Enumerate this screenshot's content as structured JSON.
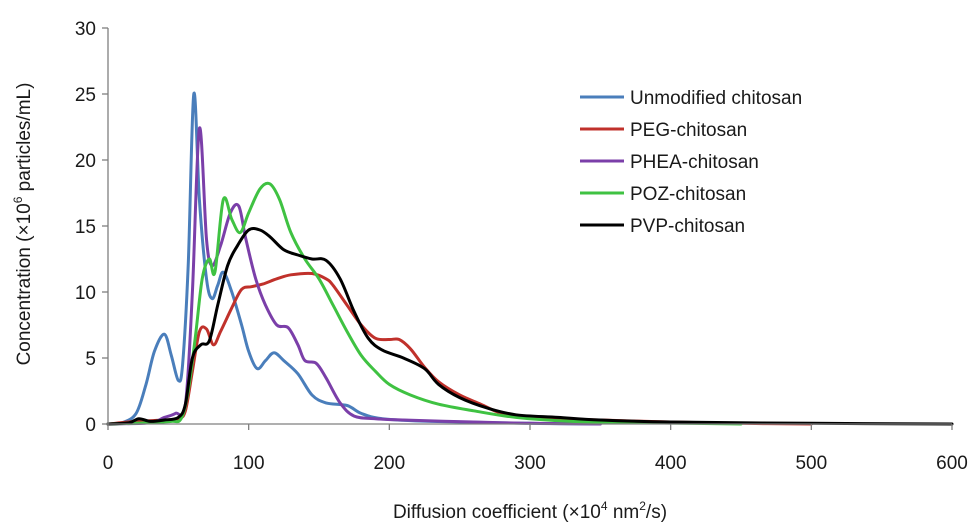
{
  "chart_data": {
    "type": "line",
    "xlabel": {
      "pre": "Diffusion coefficient (×10",
      "sup1": "4",
      "mid": " nm",
      "sup2": "2",
      "post": "/s)"
    },
    "ylabel": {
      "pre": "Concentration (×10",
      "sup": "6",
      "post": " particles/mL)"
    },
    "xlim": [
      0,
      600
    ],
    "ylim": [
      0,
      30
    ],
    "xticks": [
      "0",
      "100",
      "200",
      "300",
      "400",
      "500",
      "600"
    ],
    "yticks": [
      "0",
      "5",
      "10",
      "15",
      "20",
      "25",
      "30"
    ],
    "grid": false,
    "legend_position": "top-right",
    "series": [
      {
        "name": "Unmodified chitosan",
        "color": "#4a7ebb",
        "points": [
          [
            0,
            0
          ],
          [
            10,
            0.1
          ],
          [
            20,
            0.8
          ],
          [
            27,
            3.0
          ],
          [
            33,
            5.5
          ],
          [
            40,
            6.8
          ],
          [
            45,
            5.2
          ],
          [
            50,
            3.3
          ],
          [
            53,
            4.5
          ],
          [
            57,
            12
          ],
          [
            61,
            25
          ],
          [
            65,
            17
          ],
          [
            70,
            11
          ],
          [
            74,
            9.5
          ],
          [
            78,
            10.5
          ],
          [
            82,
            11.5
          ],
          [
            88,
            10
          ],
          [
            95,
            7.5
          ],
          [
            100,
            5.5
          ],
          [
            106,
            4.2
          ],
          [
            112,
            4.8
          ],
          [
            118,
            5.4
          ],
          [
            125,
            4.8
          ],
          [
            135,
            3.8
          ],
          [
            145,
            2.2
          ],
          [
            155,
            1.6
          ],
          [
            170,
            1.4
          ],
          [
            180,
            0.8
          ],
          [
            195,
            0.4
          ],
          [
            230,
            0.2
          ],
          [
            300,
            0.05
          ],
          [
            350,
            0
          ]
        ]
      },
      {
        "name": "PEG-chitosan",
        "color": "#c0312b",
        "points": [
          [
            0,
            0
          ],
          [
            20,
            0.2
          ],
          [
            40,
            0.3
          ],
          [
            50,
            0.4
          ],
          [
            55,
            1.0
          ],
          [
            60,
            4.0
          ],
          [
            65,
            7.0
          ],
          [
            70,
            7.2
          ],
          [
            75,
            6.0
          ],
          [
            80,
            7.0
          ],
          [
            88,
            8.8
          ],
          [
            95,
            10.2
          ],
          [
            102,
            10.4
          ],
          [
            110,
            10.6
          ],
          [
            120,
            11.0
          ],
          [
            130,
            11.3
          ],
          [
            145,
            11.4
          ],
          [
            155,
            11.0
          ],
          [
            160,
            10.5
          ],
          [
            170,
            9.0
          ],
          [
            180,
            7.5
          ],
          [
            190,
            6.5
          ],
          [
            200,
            6.4
          ],
          [
            207,
            6.4
          ],
          [
            215,
            5.7
          ],
          [
            225,
            4.3
          ],
          [
            235,
            3.2
          ],
          [
            250,
            2.2
          ],
          [
            265,
            1.5
          ],
          [
            280,
            0.8
          ],
          [
            300,
            0.5
          ],
          [
            350,
            0.3
          ],
          [
            400,
            0.15
          ],
          [
            450,
            0.05
          ],
          [
            500,
            0
          ]
        ]
      },
      {
        "name": "PHEA-chitosan",
        "color": "#7b3fa9",
        "points": [
          [
            0,
            0
          ],
          [
            30,
            0.1
          ],
          [
            40,
            0.5
          ],
          [
            48,
            0.8
          ],
          [
            55,
            1.5
          ],
          [
            60,
            10
          ],
          [
            65,
            22.4
          ],
          [
            70,
            14
          ],
          [
            74,
            12
          ],
          [
            80,
            13.5
          ],
          [
            87,
            16
          ],
          [
            93,
            16.5
          ],
          [
            98,
            14
          ],
          [
            105,
            11
          ],
          [
            112,
            9
          ],
          [
            120,
            7.5
          ],
          [
            128,
            7.3
          ],
          [
            135,
            6
          ],
          [
            140,
            4.8
          ],
          [
            148,
            4.6
          ],
          [
            155,
            3.5
          ],
          [
            165,
            1.6
          ],
          [
            175,
            0.6
          ],
          [
            190,
            0.4
          ],
          [
            210,
            0.3
          ],
          [
            260,
            0.15
          ],
          [
            300,
            0.05
          ],
          [
            350,
            0
          ]
        ]
      },
      {
        "name": "POZ-chitosan",
        "color": "#3fc242",
        "points": [
          [
            0,
            0
          ],
          [
            30,
            0.1
          ],
          [
            45,
            0.2
          ],
          [
            52,
            0.4
          ],
          [
            57,
            2.5
          ],
          [
            62,
            6.5
          ],
          [
            67,
            11
          ],
          [
            72,
            12.5
          ],
          [
            76,
            11.5
          ],
          [
            82,
            17
          ],
          [
            88,
            15.5
          ],
          [
            94,
            14.5
          ],
          [
            100,
            16
          ],
          [
            108,
            17.8
          ],
          [
            115,
            18.2
          ],
          [
            122,
            17
          ],
          [
            130,
            14.5
          ],
          [
            140,
            12.5
          ],
          [
            150,
            11
          ],
          [
            160,
            9.0
          ],
          [
            170,
            7.0
          ],
          [
            180,
            5.2
          ],
          [
            190,
            4.0
          ],
          [
            200,
            3.0
          ],
          [
            215,
            2.2
          ],
          [
            235,
            1.5
          ],
          [
            260,
            1.0
          ],
          [
            290,
            0.5
          ],
          [
            330,
            0.2
          ],
          [
            380,
            0.1
          ],
          [
            450,
            0
          ]
        ]
      },
      {
        "name": "PVP-chitosan",
        "color": "#000000",
        "points": [
          [
            0,
            0
          ],
          [
            15,
            0.1
          ],
          [
            22,
            0.4
          ],
          [
            30,
            0.2
          ],
          [
            40,
            0.3
          ],
          [
            50,
            0.5
          ],
          [
            55,
            1.5
          ],
          [
            60,
            5.0
          ],
          [
            66,
            6.0
          ],
          [
            72,
            6.3
          ],
          [
            78,
            9
          ],
          [
            85,
            12
          ],
          [
            92,
            13.5
          ],
          [
            100,
            14.7
          ],
          [
            108,
            14.7
          ],
          [
            115,
            14.2
          ],
          [
            125,
            13.2
          ],
          [
            135,
            12.8
          ],
          [
            145,
            12.5
          ],
          [
            155,
            12.4
          ],
          [
            165,
            11
          ],
          [
            175,
            8.5
          ],
          [
            185,
            6.5
          ],
          [
            195,
            5.6
          ],
          [
            210,
            5.0
          ],
          [
            225,
            4.2
          ],
          [
            235,
            3.0
          ],
          [
            250,
            2.0
          ],
          [
            270,
            1.2
          ],
          [
            290,
            0.7
          ],
          [
            320,
            0.5
          ],
          [
            350,
            0.3
          ],
          [
            400,
            0.15
          ],
          [
            500,
            0.05
          ],
          [
            600,
            0
          ]
        ]
      }
    ]
  }
}
